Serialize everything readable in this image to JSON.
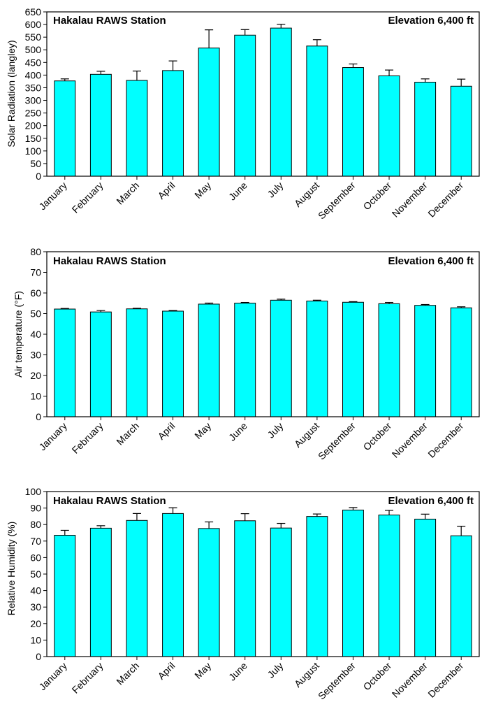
{
  "chart_data": [
    {
      "type": "bar",
      "title": "Hakalau RAWS Station",
      "subtitle": "Elevation 6,400 ft",
      "xlabel": "",
      "ylabel": "Solar Radiation (langley)",
      "ylim": [
        0,
        650
      ],
      "yticks": [
        0,
        50,
        100,
        150,
        200,
        250,
        300,
        350,
        400,
        450,
        500,
        550,
        600,
        650
      ],
      "grid": false,
      "bar_color": "#00FFFF",
      "categories": [
        "January",
        "February",
        "March",
        "April",
        "May",
        "June",
        "July",
        "August",
        "September",
        "October",
        "November",
        "December"
      ],
      "values": [
        377,
        403,
        379,
        418,
        507,
        558,
        586,
        515,
        430,
        397,
        372,
        356
      ],
      "errors": [
        8,
        12,
        37,
        38,
        72,
        22,
        15,
        25,
        14,
        23,
        13,
        28
      ]
    },
    {
      "type": "bar",
      "title": "Hakalau RAWS Station",
      "subtitle": "Elevation 6,400 ft",
      "xlabel": "",
      "ylabel": "Air temperature (°F)",
      "ylim": [
        0,
        80
      ],
      "yticks": [
        0,
        10,
        20,
        30,
        40,
        50,
        60,
        70,
        80
      ],
      "grid": false,
      "bar_color": "#00FFFF",
      "categories": [
        "January",
        "February",
        "March",
        "April",
        "May",
        "June",
        "July",
        "August",
        "September",
        "October",
        "November",
        "December"
      ],
      "values": [
        52.2,
        50.8,
        52.3,
        51.2,
        54.6,
        55.1,
        56.5,
        56.1,
        55.5,
        54.8,
        54.0,
        52.8
      ],
      "errors": [
        0.3,
        0.7,
        0.3,
        0.3,
        0.5,
        0.3,
        0.5,
        0.4,
        0.3,
        0.6,
        0.4,
        0.5
      ]
    },
    {
      "type": "bar",
      "title": "Hakalau RAWS Station",
      "subtitle": "Elevation 6,400 ft",
      "xlabel": "",
      "ylabel": "Relative Humidity (%)",
      "ylim": [
        0,
        100
      ],
      "yticks": [
        0,
        10,
        20,
        30,
        40,
        50,
        60,
        70,
        80,
        90,
        100
      ],
      "grid": false,
      "bar_color": "#00FFFF",
      "categories": [
        "January",
        "February",
        "March",
        "April",
        "May",
        "June",
        "July",
        "August",
        "September",
        "October",
        "November",
        "December"
      ],
      "values": [
        73.5,
        77.8,
        82.5,
        86.7,
        77.6,
        82.3,
        77.9,
        84.9,
        88.8,
        85.8,
        83.3,
        73.2
      ],
      "errors": [
        3.0,
        1.5,
        4.2,
        3.5,
        4.0,
        4.3,
        2.8,
        1.5,
        1.5,
        2.8,
        3.0,
        5.8
      ]
    }
  ]
}
